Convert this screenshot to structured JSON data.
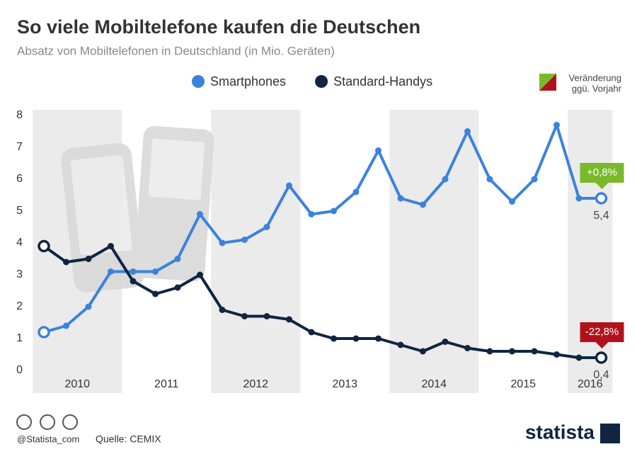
{
  "chart_data": {
    "type": "line",
    "title": "So viele Mobiltelefone kaufen die Deutschen",
    "subtitle": "Absatz von Mobiltelefonen in Deutschland (in Mio. Geräten)",
    "categories": [
      "2010",
      null,
      null,
      null,
      "2011",
      null,
      null,
      null,
      "2012",
      null,
      null,
      null,
      "2013",
      null,
      null,
      null,
      "2014",
      null,
      null,
      null,
      "2015",
      null,
      null,
      null,
      "2016",
      null
    ],
    "series": [
      {
        "name": "Smartphones",
        "color": "#3b82dc",
        "values": [
          1.2,
          1.4,
          2.0,
          3.1,
          3.1,
          3.1,
          3.5,
          4.9,
          4.0,
          4.1,
          4.5,
          5.8,
          4.9,
          5.0,
          5.6,
          6.9,
          5.4,
          5.2,
          6.0,
          7.5,
          6.0,
          5.3,
          6.0,
          7.7,
          5.4,
          5.4
        ],
        "value_labels": [
          null,
          null,
          null,
          null,
          null,
          null,
          null,
          null,
          null,
          null,
          null,
          null,
          null,
          null,
          null,
          null,
          null,
          null,
          null,
          null,
          null,
          null,
          null,
          null,
          null,
          "5,4"
        ],
        "change": "+0,8%",
        "change_color": "#7ab929"
      },
      {
        "name": "Standard-Handys",
        "color": "#0f2541",
        "values": [
          3.9,
          3.4,
          3.5,
          3.9,
          2.8,
          2.4,
          2.6,
          3.0,
          1.9,
          1.7,
          1.7,
          1.6,
          1.2,
          1.0,
          1.0,
          1.0,
          0.8,
          0.6,
          0.9,
          0.7,
          0.6,
          0.6,
          0.6,
          0.5,
          0.4,
          0.4
        ],
        "value_labels": [
          null,
          null,
          null,
          null,
          null,
          null,
          null,
          null,
          null,
          null,
          null,
          null,
          null,
          null,
          null,
          null,
          null,
          null,
          null,
          null,
          null,
          null,
          null,
          null,
          null,
          "0,4"
        ],
        "change": "-22,8%",
        "change_color": "#b0121c"
      }
    ],
    "change_legend": [
      "Veränderung",
      "ggü. Vorjahr"
    ],
    "ylim": [
      0,
      8
    ],
    "yticks": [
      0,
      1,
      2,
      3,
      4,
      5,
      6,
      7,
      8
    ],
    "source": "Quelle: CEMIX",
    "handle": "@Statista_com",
    "brand": "statista"
  }
}
